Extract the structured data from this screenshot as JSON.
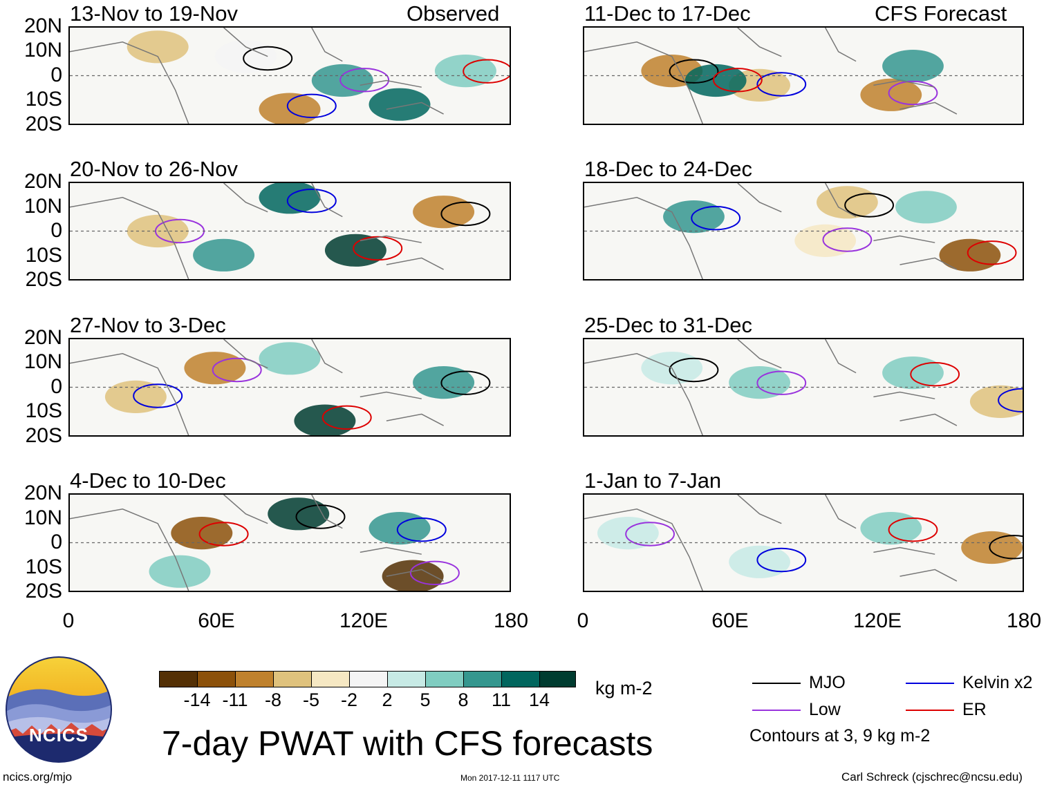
{
  "y_axis_labels": [
    "20N",
    "10N",
    "0",
    "10S",
    "20S"
  ],
  "x_axis_labels": [
    "0",
    "60E",
    "120E",
    "180"
  ],
  "columns": {
    "left": {
      "header": "Observed"
    },
    "right": {
      "header": "CFS Forecast"
    }
  },
  "panels": {
    "left": [
      {
        "title": "13-Nov to 19-Nov"
      },
      {
        "title": "20-Nov to 26-Nov"
      },
      {
        "title": "27-Nov to 3-Dec"
      },
      {
        "title": "4-Dec to 10-Dec"
      }
    ],
    "right": [
      {
        "title": "11-Dec to 17-Dec"
      },
      {
        "title": "18-Dec to 24-Dec"
      },
      {
        "title": "25-Dec to 31-Dec"
      },
      {
        "title": "1-Jan to 7-Jan"
      }
    ]
  },
  "colorbar": {
    "labels": [
      "-14",
      "-11",
      "-8",
      "-5",
      "-2",
      "2",
      "5",
      "8",
      "11",
      "14"
    ],
    "colors": [
      "#543005",
      "#8c510a",
      "#bf812d",
      "#dfc27d",
      "#f6e8c3",
      "#f5f5f5",
      "#c7eae5",
      "#80cdc1",
      "#35978f",
      "#01665e",
      "#003c30"
    ],
    "units": "kg m-2"
  },
  "legend": {
    "items": [
      {
        "label": "MJO",
        "color": "#000000"
      },
      {
        "label": "Kelvin x2",
        "color": "#0000dd"
      },
      {
        "label": "Low",
        "color": "#9933dd"
      },
      {
        "label": "ER",
        "color": "#dd0000"
      }
    ],
    "note": "Contours at 3, 9 kg m-2"
  },
  "logo": {
    "text": "NCICS"
  },
  "main_title": "7-day PWAT with CFS forecasts",
  "footer": {
    "left": "ncics.org/mjo",
    "center": "Mon 2017-12-11 1117 UTC",
    "right": "Carl Schreck (cjschrec@ncsu.edu)"
  }
}
